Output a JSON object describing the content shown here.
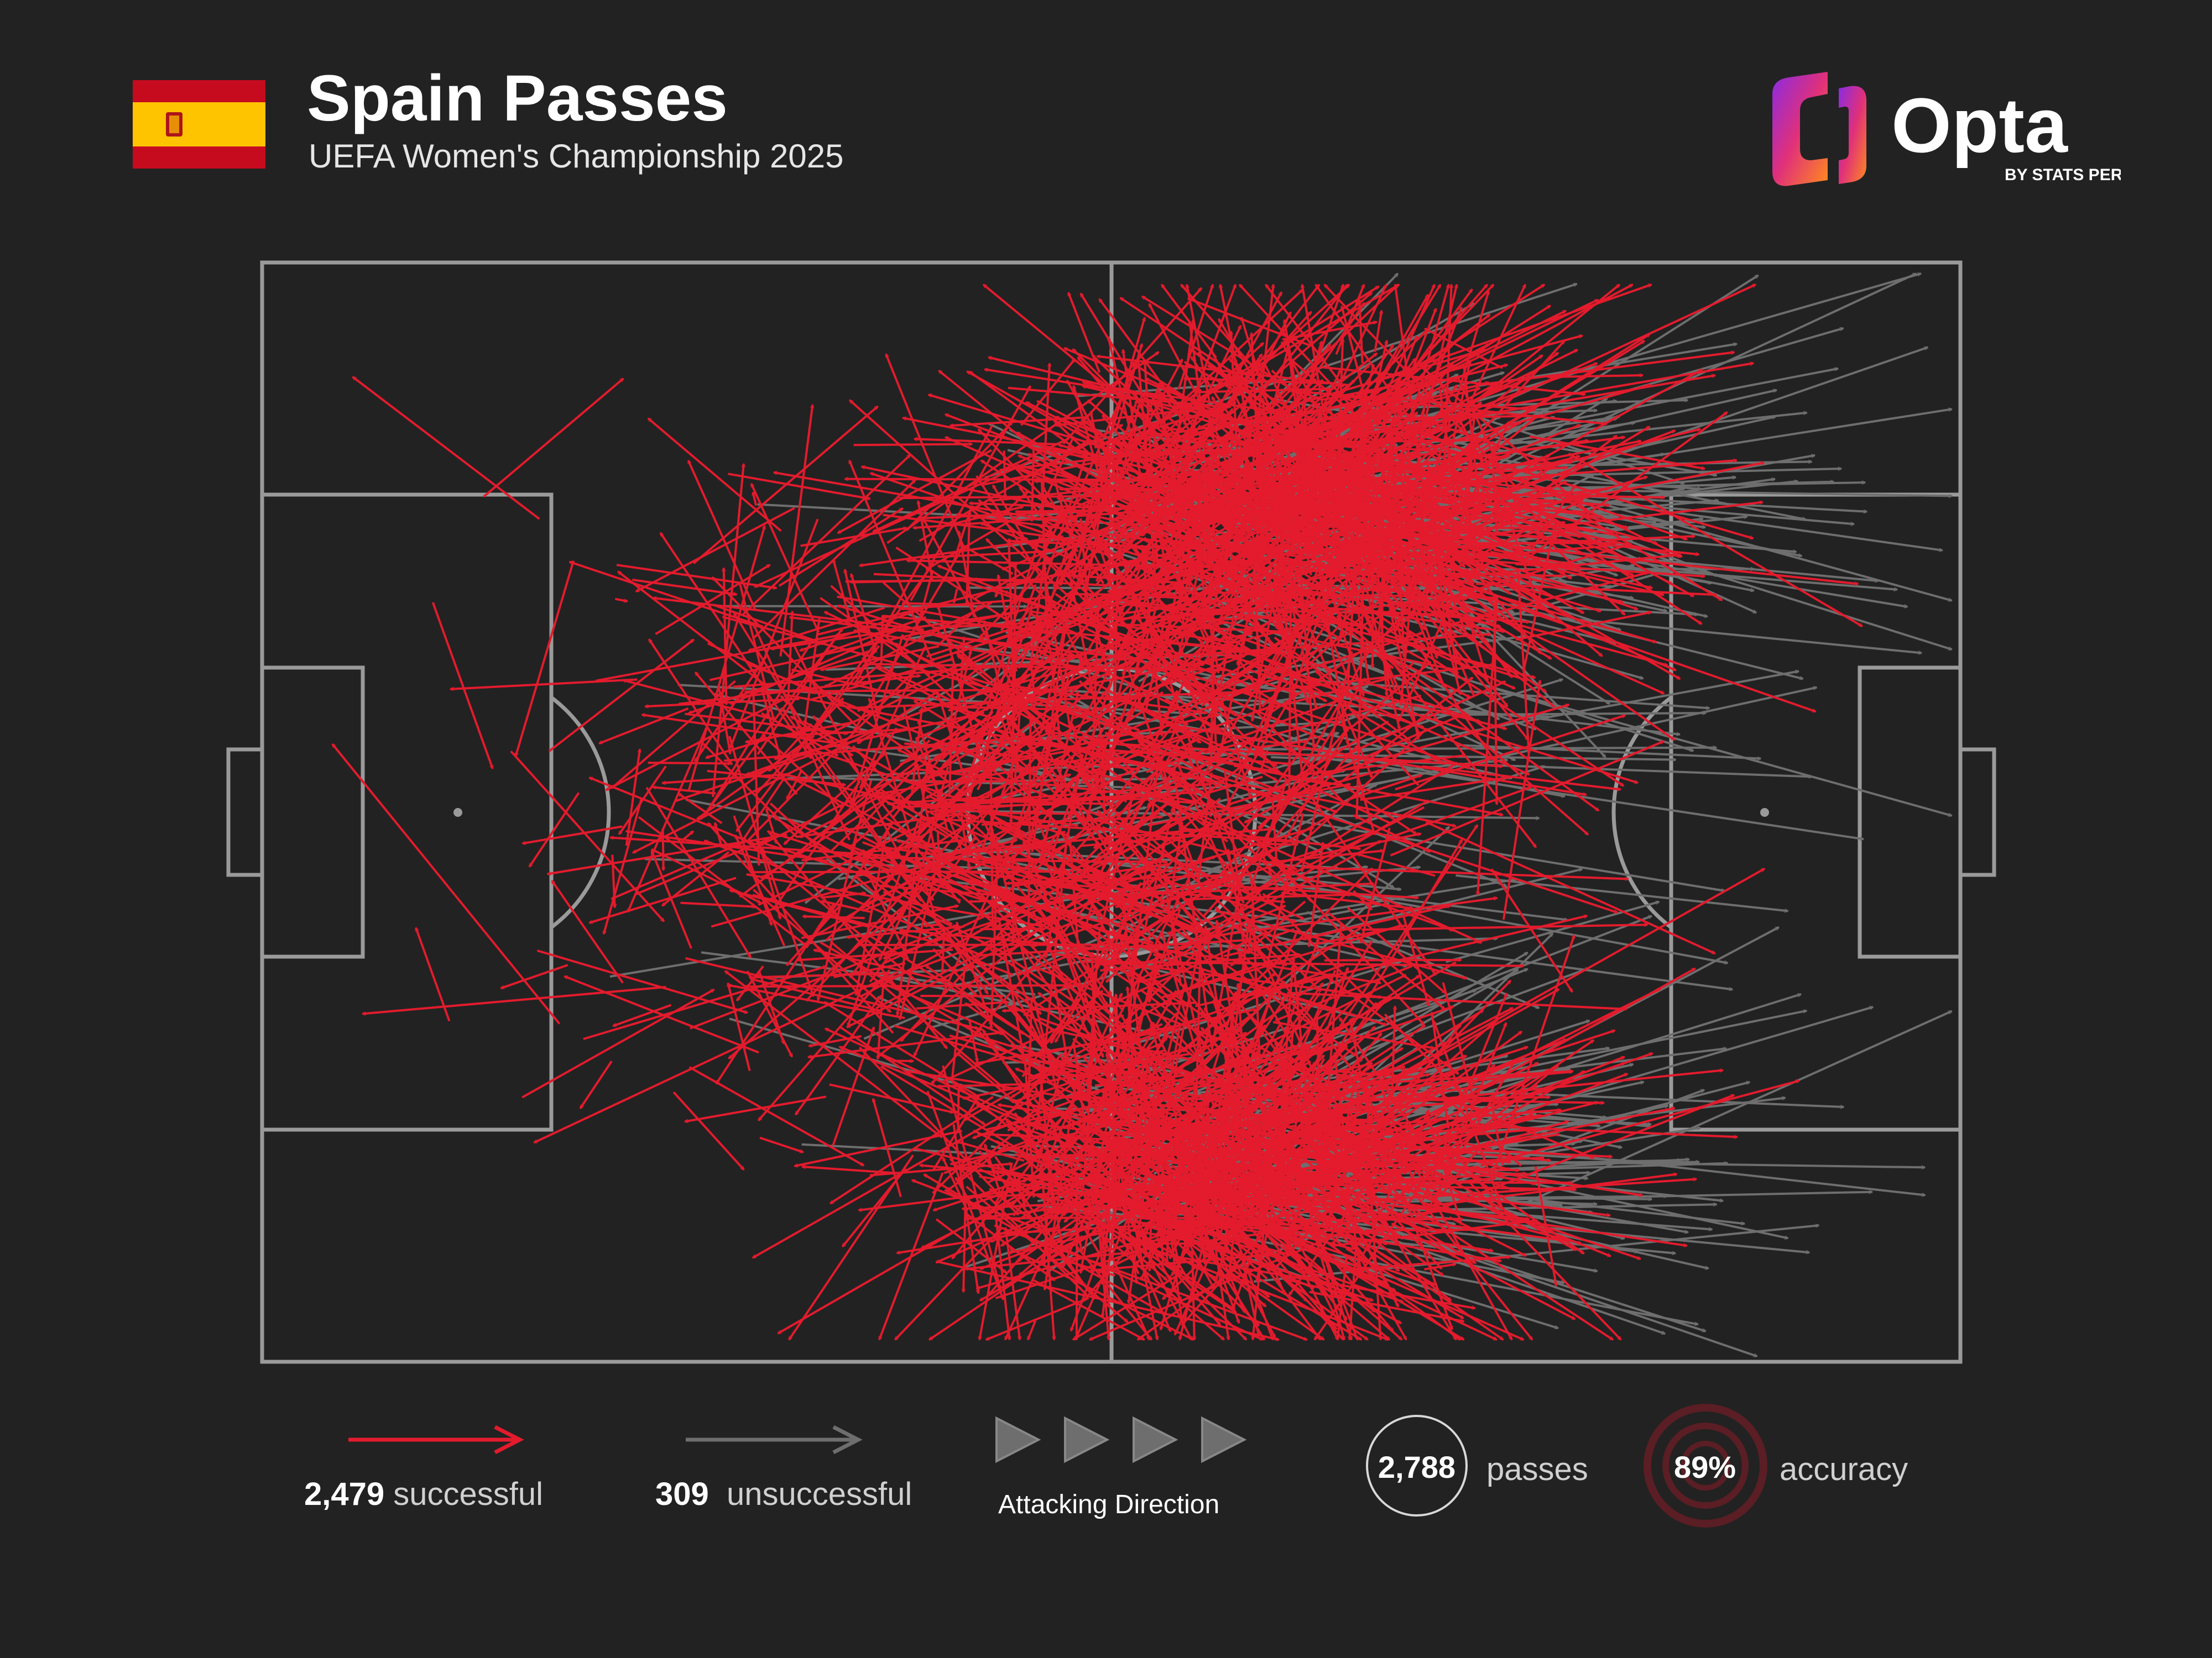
{
  "header": {
    "title": "Spain Passes",
    "subtitle": "UEFA Women's Championship 2025",
    "flag_icon": "spain-flag-icon",
    "logo_text": "Opta",
    "logo_tagline": "BY STATS PERFORM"
  },
  "colors": {
    "background": "#222222",
    "successful": "#e31b2d",
    "unsuccessful": "#6e6e6e",
    "pitch_lines": "#9a9a9a"
  },
  "legend": {
    "successful_count": "2,479",
    "successful_label": "successful",
    "unsuccessful_count": "309",
    "unsuccessful_label": "unsuccessful",
    "direction_label": "Attacking Direction",
    "passes_count": "2,788",
    "passes_label": "passes",
    "accuracy_value": "89%",
    "accuracy_label": "accuracy"
  },
  "chart_data": {
    "type": "scatter",
    "title": "Spain Passes",
    "subtitle": "UEFA Women's Championship 2025",
    "pitch_length": [
      0,
      100
    ],
    "pitch_width": [
      0,
      100
    ],
    "attacking_direction": "left-to-right",
    "series": [
      {
        "name": "successful",
        "count": 2479
      },
      {
        "name": "unsuccessful",
        "count": 309
      }
    ],
    "total_passes": 2788,
    "accuracy_percent": 89
  }
}
